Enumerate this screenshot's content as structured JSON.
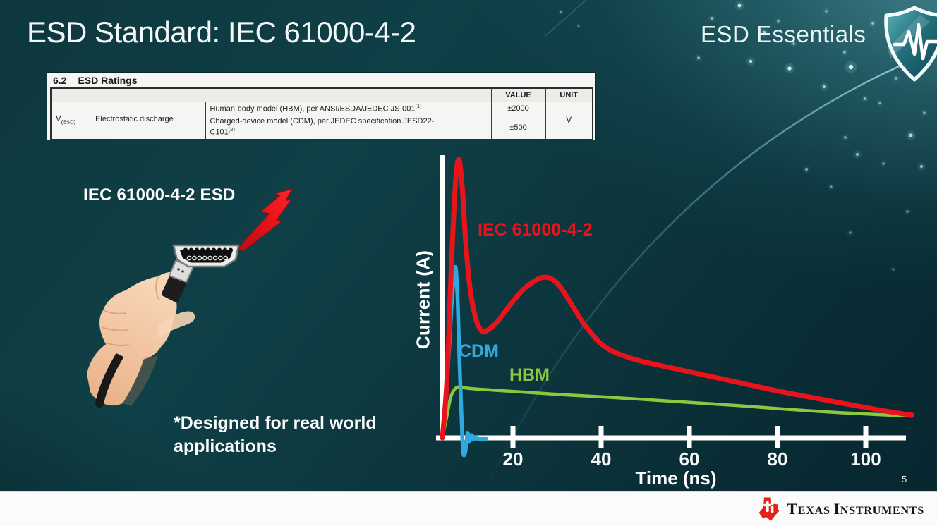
{
  "slide": {
    "title": "ESD Standard: IEC 61000-4-2",
    "page_number": "5"
  },
  "brand": {
    "series_title": "ESD Essentials",
    "shield_icon": "shield-with-pulse",
    "footer_logo_name": "Texas Instruments"
  },
  "ratings_table": {
    "section": "6.2",
    "heading": "ESD Ratings",
    "col_headers": [
      "VALUE",
      "UNIT"
    ],
    "symbol_base": "V",
    "symbol_sub": "(ESD)",
    "parameter": "Electrostatic discharge",
    "rows": [
      {
        "description": "Human-body model (HBM), per ANSI/ESDA/JEDEC JS-001",
        "footnote": "(1)",
        "value": "±2000"
      },
      {
        "description": "Charged-device model (CDM), per JEDEC specification JESD22-\nC101",
        "footnote": "(2)",
        "value": "±500"
      }
    ],
    "unit": "V"
  },
  "illustration": {
    "label": "IEC 61000-4-2 ESD",
    "note": "*Designed for real world\napplications"
  },
  "chart_data": {
    "type": "line",
    "title": "",
    "xlabel": "Time (ns)",
    "ylabel": "Current (A)",
    "x_ticks": [
      20,
      40,
      60,
      80,
      100
    ],
    "xlim": [
      0,
      112
    ],
    "ylim": [
      -4,
      31
    ],
    "grid": false,
    "legend": "inline-labels",
    "series": [
      {
        "name": "IEC 61000-4-2",
        "color": "#e8141c",
        "points": [
          [
            4,
            0
          ],
          [
            5,
            6
          ],
          [
            5.9,
            17
          ],
          [
            6.9,
            27
          ],
          [
            7.7,
            30
          ],
          [
            8.5,
            27
          ],
          [
            9.3,
            21
          ],
          [
            10.3,
            16
          ],
          [
            11.6,
            12.8
          ],
          [
            13,
            11.5
          ],
          [
            14.6,
            11.7
          ],
          [
            16.6,
            12.6
          ],
          [
            19.5,
            14.4
          ],
          [
            22.4,
            16
          ],
          [
            25.3,
            17
          ],
          [
            27.2,
            17.3
          ],
          [
            29.2,
            17
          ],
          [
            31.1,
            16
          ],
          [
            33.5,
            14.2
          ],
          [
            35.9,
            12.4
          ],
          [
            37.9,
            11.2
          ],
          [
            39.8,
            10.2
          ],
          [
            42.7,
            9.3
          ],
          [
            46.6,
            8.6
          ],
          [
            50.5,
            8.1
          ],
          [
            57.2,
            7.4
          ],
          [
            64,
            6.7
          ],
          [
            71.8,
            5.9
          ],
          [
            79.5,
            5.1
          ],
          [
            87.2,
            4.4
          ],
          [
            95,
            3.7
          ],
          [
            100.8,
            3.2
          ],
          [
            105.6,
            2.8
          ],
          [
            110.5,
            2.45
          ]
        ]
      },
      {
        "name": "CDM",
        "color": "#2fa9de",
        "points": [
          [
            4,
            0
          ],
          [
            4.7,
            3.5
          ],
          [
            5.5,
            9.5
          ],
          [
            6.2,
            15
          ],
          [
            6.9,
            18.4
          ],
          [
            7.4,
            15.5
          ],
          [
            7.9,
            8
          ],
          [
            8.4,
            1.5
          ],
          [
            8.7,
            -1.55
          ],
          [
            9.1,
            -1.7
          ],
          [
            9.4,
            -0.8
          ],
          [
            9.7,
            0.55
          ],
          [
            10.1,
            -0.35
          ],
          [
            10.6,
            0.3
          ],
          [
            11,
            -0.15
          ],
          [
            11.5,
            0.05
          ],
          [
            12.2,
            -0.12
          ],
          [
            12.9,
            -0.12
          ],
          [
            14,
            -0.12
          ]
        ]
      },
      {
        "name": "HBM",
        "color": "#8dc63f",
        "points": [
          [
            4,
            0
          ],
          [
            5,
            2.3
          ],
          [
            5.9,
            4.4
          ],
          [
            6.9,
            5.3
          ],
          [
            7.9,
            5.5
          ],
          [
            8.8,
            5.4
          ],
          [
            10.8,
            5.3
          ],
          [
            13.7,
            5.2
          ],
          [
            18.5,
            5.05
          ],
          [
            23.4,
            4.9
          ],
          [
            33,
            4.6
          ],
          [
            42.7,
            4.35
          ],
          [
            52.4,
            4.05
          ],
          [
            62.1,
            3.75
          ],
          [
            71.8,
            3.45
          ],
          [
            81.4,
            3.1
          ],
          [
            91.1,
            2.8
          ],
          [
            100.8,
            2.55
          ],
          [
            106.6,
            2.42
          ],
          [
            110.5,
            2.35
          ]
        ]
      }
    ]
  },
  "colors": {
    "background_teal": "#0d3840",
    "accent_red": "#e8141c",
    "cdm_blue": "#2fa9de",
    "hbm_green": "#8dc63f",
    "ti_red": "#e2231a",
    "footer_bg": "#fbfbfb"
  }
}
